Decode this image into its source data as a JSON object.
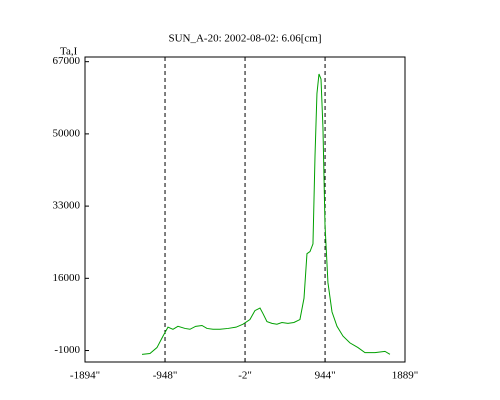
{
  "chart_data": {
    "type": "line",
    "title": "SUN_A-20: 2002-08-02: 6.06[cm]",
    "y_label": "Ta,I",
    "x": [
      -1220,
      -1126,
      -1043,
      -972,
      -913,
      -854,
      -795,
      -712,
      -653,
      -586,
      -511,
      -452,
      -381,
      -298,
      -203,
      -108,
      -26,
      56,
      115,
      175,
      210,
      257,
      316,
      375,
      434,
      505,
      576,
      647,
      695,
      730,
      766,
      801,
      825,
      848,
      872,
      896,
      919,
      943,
      978,
      1026,
      1085,
      1156,
      1238,
      1333,
      1416,
      1534,
      1652,
      1711
    ],
    "series": [
      {
        "color": "#00a000",
        "values": [
          -1900,
          -1700,
          -300,
          2400,
          4500,
          4000,
          4700,
          4200,
          4000,
          4700,
          4900,
          4200,
          4000,
          4000,
          4200,
          4500,
          5200,
          6300,
          8400,
          9000,
          7700,
          5800,
          5400,
          5200,
          5600,
          5400,
          5600,
          6300,
          11300,
          21800,
          22300,
          24100,
          44700,
          59500,
          64100,
          62900,
          51500,
          28700,
          15000,
          8100,
          4700,
          2400,
          800,
          -300,
          -1500,
          -1500,
          -1200,
          -1900
        ]
      }
    ],
    "xlim": [
      -1894,
      1889
    ],
    "ylim": [
      -3700,
      68100
    ],
    "xticks": [
      {
        "value": -1894,
        "label": "-1894\""
      },
      {
        "value": -948,
        "label": "-948\""
      },
      {
        "value": -2,
        "label": "-2\""
      },
      {
        "value": 944,
        "label": "944\""
      },
      {
        "value": 1889,
        "label": "1889\""
      }
    ],
    "yticks": [
      -1000,
      16000,
      33000,
      50000,
      67000
    ],
    "vlines": [
      -948,
      -2,
      944
    ]
  }
}
